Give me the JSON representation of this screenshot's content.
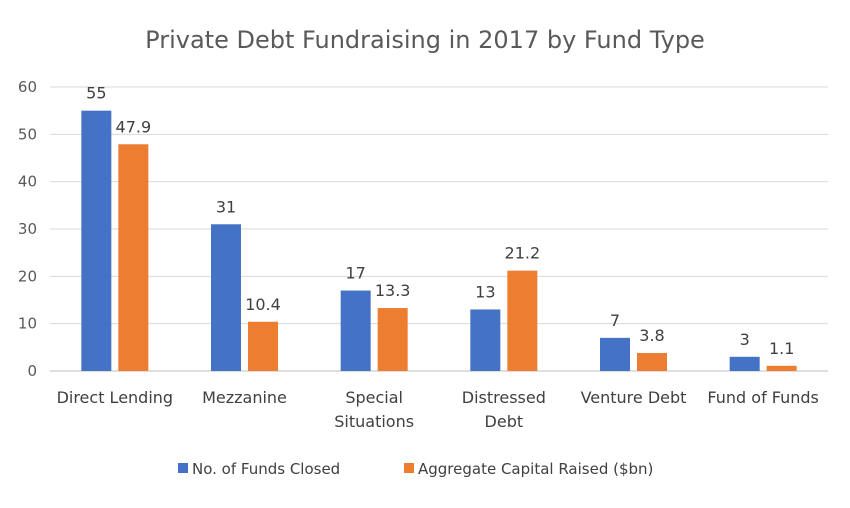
{
  "chart_data": {
    "type": "bar",
    "title": "Private Debt Fundraising in 2017 by Fund Type",
    "categories": [
      [
        "Direct Lending"
      ],
      [
        "Mezzanine"
      ],
      [
        "Special",
        "Situations"
      ],
      [
        "Distressed",
        "Debt"
      ],
      [
        "Venture Debt"
      ],
      [
        "Fund of Funds"
      ]
    ],
    "series": [
      {
        "name": "No. of Funds Closed",
        "color": "#4472C4",
        "values": [
          55,
          31,
          17,
          13,
          7,
          3
        ],
        "labels": [
          "55",
          "31",
          "17",
          "13",
          "7",
          "3"
        ]
      },
      {
        "name": "Aggregate Capital Raised ($bn)",
        "color": "#ED7D31",
        "values": [
          47.9,
          10.4,
          13.3,
          21.2,
          3.8,
          1.1
        ],
        "labels": [
          "47.9",
          "10.4",
          "13.3",
          "21.2",
          "3.8",
          "1.1"
        ]
      }
    ],
    "ylim": [
      0,
      60
    ],
    "yticks": [
      0,
      10,
      20,
      30,
      40,
      50,
      60
    ],
    "grid": true,
    "legend": "bottom"
  }
}
